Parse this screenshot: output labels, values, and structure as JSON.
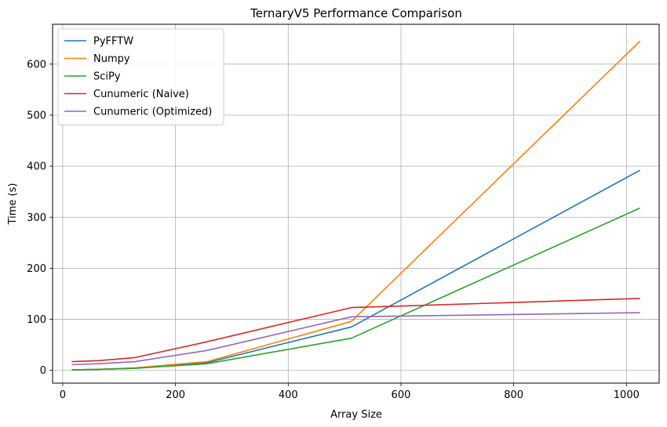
{
  "chart_data": {
    "type": "line",
    "title": "TernaryV5 Performance Comparison",
    "xlabel": "Array Size",
    "ylabel": "Time (s)",
    "x": [
      16,
      64,
      128,
      256,
      512,
      1024
    ],
    "xlim": [
      -18,
      1058
    ],
    "ylim": [
      -25,
      678
    ],
    "xticks": [
      0,
      200,
      400,
      600,
      800,
      1000
    ],
    "yticks": [
      0,
      100,
      200,
      300,
      400,
      500,
      600
    ],
    "grid": true,
    "legend_position": "upper-left",
    "series": [
      {
        "name": "PyFFTW",
        "color": "#1f77b4",
        "values": [
          1,
          2,
          4,
          15,
          85,
          392
        ]
      },
      {
        "name": "Numpy",
        "color": "#ff7f0e",
        "values": [
          1,
          2,
          5,
          17,
          96,
          645
        ]
      },
      {
        "name": "SciPy",
        "color": "#2ca02c",
        "values": [
          1,
          2,
          4,
          13,
          63,
          318
        ]
      },
      {
        "name": "Cunumeric (Naive)",
        "color": "#d62728",
        "values": [
          17,
          19,
          25,
          56,
          123,
          141
        ]
      },
      {
        "name": "Cunumeric (Optimized)",
        "color": "#9467bd",
        "values": [
          11,
          13,
          17,
          39,
          105,
          113
        ]
      }
    ]
  }
}
